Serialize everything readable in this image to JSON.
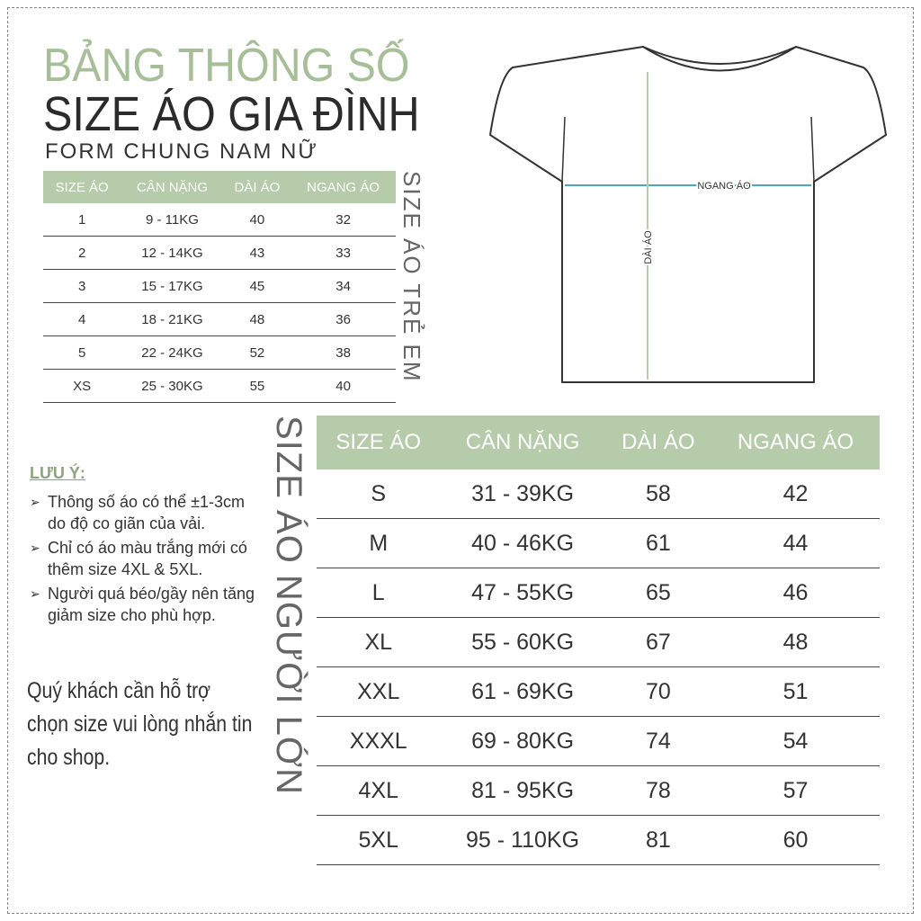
{
  "title": {
    "line1": "BẢNG THÔNG SỐ",
    "line2": "SIZE ÁO GIA ĐÌNH",
    "line3": "FORM CHUNG NAM NỮ"
  },
  "colors": {
    "accent": "#b5cba9",
    "title_green": "#a6bf98"
  },
  "kids_table": {
    "side_label": "SIZE ÁO TRẺ EM",
    "headers": [
      "SIZE ÁO",
      "CÂN NẶNG",
      "DÀI ÁO",
      "NGANG ÁO"
    ],
    "rows": [
      [
        "1",
        "9 - 11KG",
        "40",
        "32"
      ],
      [
        "2",
        "12 - 14KG",
        "43",
        "33"
      ],
      [
        "3",
        "15 - 17KG",
        "45",
        "34"
      ],
      [
        "4",
        "18 - 21KG",
        "48",
        "36"
      ],
      [
        "5",
        "22 - 24KG",
        "52",
        "38"
      ],
      [
        "XS",
        "25 - 30KG",
        "55",
        "40"
      ]
    ]
  },
  "adult_table": {
    "side_label": "SIZE ÁO NGƯỜI LỚN",
    "headers": [
      "SIZE ÁO",
      "CÂN NẶNG",
      "DÀI ÁO",
      "NGANG ÁO"
    ],
    "rows": [
      [
        "S",
        "31 - 39KG",
        "58",
        "42"
      ],
      [
        "M",
        "40 - 46KG",
        "61",
        "44"
      ],
      [
        "L",
        "47 - 55KG",
        "65",
        "46"
      ],
      [
        "XL",
        "55 - 60KG",
        "67",
        "48"
      ],
      [
        "XXL",
        "61 - 69KG",
        "70",
        "51"
      ],
      [
        "XXXL",
        "69 - 80KG",
        "74",
        "54"
      ],
      [
        "4XL",
        "81 - 95KG",
        "78",
        "57"
      ],
      [
        "5XL",
        "95 - 110KG",
        "81",
        "60"
      ]
    ]
  },
  "diagram": {
    "width_label": "NGANG ÁO",
    "length_label": "DÀI ÁO"
  },
  "notes": {
    "title": "LƯU Ý:",
    "items": [
      "Thông số áo có thể ±1-3cm do độ co giãn của vải.",
      "Chỉ có áo màu trắng mới có thêm size 4XL & 5XL.",
      "Người quá béo/gầy nên tăng giảm size cho phù hợp."
    ]
  },
  "contact": "Quý khách cần hỗ trợ chọn size vui lòng nhắn tin cho shop."
}
